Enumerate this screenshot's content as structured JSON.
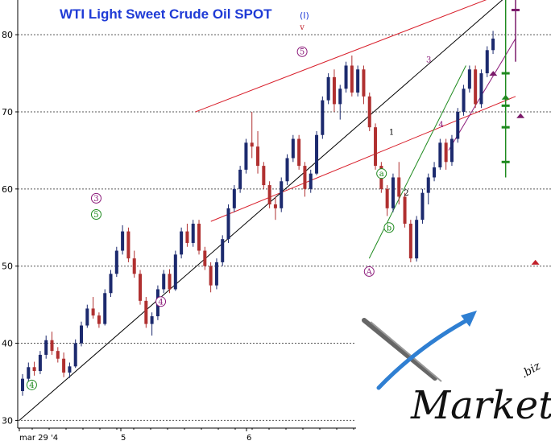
{
  "chart_data": {
    "type": "candlestick",
    "title": "WTI Light Sweet Crude Oil SPOT",
    "title_suffix": "(I)",
    "y_ticks": [
      "30",
      "40",
      "50",
      "60",
      "70",
      "80"
    ],
    "x_ticks": [
      "mar 29 '4",
      "5",
      "6"
    ],
    "ylim": [
      29,
      84.5
    ],
    "xlim": [
      0,
      100
    ],
    "grid": "horizontal dashed",
    "colors": {
      "up": "#1c2a6e",
      "down": "#b03030",
      "channel": "#d81e2a",
      "trend": "#000000",
      "wave_green": "#1e8a1e",
      "wave_purple": "#8b1a7a",
      "target_green": "#1e8a1e",
      "target_purple": "#7a1a6a"
    },
    "candles": [
      [
        33.8,
        36.0,
        33.2,
        35.4
      ],
      [
        35.4,
        37.5,
        34.9,
        36.9
      ],
      [
        36.9,
        37.6,
        35.8,
        36.4
      ],
      [
        36.4,
        39.0,
        36.0,
        38.5
      ],
      [
        38.5,
        41.0,
        38.0,
        40.4
      ],
      [
        40.4,
        41.5,
        38.5,
        39.0
      ],
      [
        39.0,
        39.5,
        37.5,
        38.0
      ],
      [
        38.0,
        38.8,
        35.6,
        36.2
      ],
      [
        36.2,
        37.5,
        35.5,
        37.0
      ],
      [
        37.0,
        40.5,
        36.8,
        40.0
      ],
      [
        40.0,
        42.8,
        39.6,
        42.3
      ],
      [
        42.3,
        45.0,
        42.0,
        44.5
      ],
      [
        44.5,
        46.0,
        43.2,
        43.6
      ],
      [
        43.6,
        44.0,
        42.0,
        42.5
      ],
      [
        42.5,
        47.0,
        42.3,
        46.5
      ],
      [
        46.5,
        49.5,
        46.0,
        49.0
      ],
      [
        49.0,
        52.5,
        48.6,
        52.0
      ],
      [
        52.0,
        55.3,
        51.5,
        54.5
      ],
      [
        54.5,
        55.0,
        50.5,
        51.0
      ],
      [
        51.0,
        52.0,
        48.5,
        49.0
      ],
      [
        49.0,
        49.5,
        45.0,
        45.5
      ],
      [
        45.5,
        46.0,
        42.0,
        42.5
      ],
      [
        42.5,
        44.0,
        41.0,
        43.5
      ],
      [
        43.5,
        47.5,
        43.0,
        47.0
      ],
      [
        47.0,
        49.5,
        46.5,
        49.0
      ],
      [
        49.0,
        49.6,
        46.5,
        47.0
      ],
      [
        47.0,
        52.0,
        46.8,
        51.5
      ],
      [
        51.5,
        55.0,
        51.0,
        54.5
      ],
      [
        54.5,
        55.5,
        52.5,
        53.0
      ],
      [
        53.0,
        56.0,
        52.5,
        55.5
      ],
      [
        55.5,
        56.0,
        51.5,
        52.0
      ],
      [
        52.0,
        52.5,
        49.5,
        50.0
      ],
      [
        50.0,
        50.5,
        46.6,
        47.5
      ],
      [
        47.5,
        51.0,
        47.0,
        50.5
      ],
      [
        50.5,
        54.0,
        50.0,
        53.5
      ],
      [
        53.5,
        58.0,
        53.0,
        57.5
      ],
      [
        57.5,
        60.5,
        57.0,
        60.0
      ],
      [
        60.0,
        63.0,
        59.5,
        62.5
      ],
      [
        62.5,
        66.5,
        62.0,
        66.0
      ],
      [
        66.0,
        70.0,
        64.0,
        65.5
      ],
      [
        65.5,
        67.5,
        62.0,
        63.0
      ],
      [
        63.0,
        63.5,
        60.0,
        60.5
      ],
      [
        60.5,
        61.0,
        57.5,
        58.0
      ],
      [
        58.0,
        59.0,
        56.0,
        57.5
      ],
      [
        57.5,
        61.5,
        57.0,
        61.0
      ],
      [
        61.0,
        64.5,
        60.5,
        64.0
      ],
      [
        64.0,
        67.0,
        63.5,
        66.5
      ],
      [
        66.5,
        67.0,
        62.5,
        63.0
      ],
      [
        63.0,
        63.5,
        59.0,
        60.0
      ],
      [
        60.0,
        62.5,
        59.5,
        62.0
      ],
      [
        62.0,
        67.5,
        61.8,
        67.0
      ],
      [
        67.0,
        72.0,
        66.5,
        71.5
      ],
      [
        71.5,
        75.0,
        71.0,
        74.5
      ],
      [
        74.5,
        75.5,
        70.0,
        71.0
      ],
      [
        71.0,
        73.5,
        69.0,
        73.0
      ],
      [
        73.0,
        76.5,
        72.5,
        76.0
      ],
      [
        76.0,
        77.3,
        72.0,
        72.5
      ],
      [
        72.5,
        76.0,
        72.0,
        75.5
      ],
      [
        75.5,
        76.0,
        71.0,
        72.0
      ],
      [
        72.0,
        72.5,
        67.5,
        68.0
      ],
      [
        68.0,
        68.5,
        62.5,
        63.0
      ],
      [
        63.0,
        63.5,
        59.5,
        60.0
      ],
      [
        60.0,
        60.5,
        56.5,
        57.5
      ],
      [
        57.5,
        62.0,
        57.0,
        61.5
      ],
      [
        61.5,
        63.5,
        58.0,
        59.0
      ],
      [
        59.0,
        59.5,
        55.0,
        55.5
      ],
      [
        55.5,
        56.0,
        50.5,
        51.0
      ],
      [
        51.0,
        56.5,
        50.6,
        56.0
      ],
      [
        56.0,
        60.0,
        55.5,
        59.5
      ],
      [
        59.5,
        62.0,
        58.0,
        61.5
      ],
      [
        61.5,
        63.5,
        61.0,
        62.8
      ],
      [
        62.8,
        66.5,
        62.5,
        66.0
      ],
      [
        66.0,
        66.5,
        62.5,
        63.5
      ],
      [
        63.5,
        67.0,
        63.0,
        66.5
      ],
      [
        66.5,
        70.5,
        66.0,
        70.0
      ],
      [
        70.0,
        73.5,
        69.5,
        73.0
      ],
      [
        73.0,
        76.0,
        72.5,
        75.5
      ],
      [
        75.5,
        76.0,
        70.5,
        71.0
      ],
      [
        71.0,
        75.5,
        70.5,
        75.0
      ],
      [
        75.0,
        78.5,
        74.5,
        78.0
      ],
      [
        78.0,
        80.5,
        77.5,
        79.5
      ]
    ],
    "channels": [
      {
        "name": "upper",
        "points": [
          [
            35.5,
            70.0
          ],
          [
            100,
            86.0
          ]
        ]
      },
      {
        "name": "lower",
        "points": [
          [
            38.6,
            55.8
          ],
          [
            100,
            72.0
          ]
        ]
      },
      {
        "name": "long-trend",
        "points": [
          [
            0,
            30.0
          ],
          [
            100,
            86.0
          ]
        ]
      },
      {
        "name": "green-trend",
        "points": [
          [
            70.5,
            51.0
          ],
          [
            90.0,
            76.0
          ]
        ]
      },
      {
        "name": "purple-trend",
        "points": [
          [
            86.5,
            65.0
          ],
          [
            100,
            79.5
          ]
        ]
      }
    ],
    "wave_labels": [
      {
        "text": "4",
        "x": 2.5,
        "y": 34.6,
        "style": "circle",
        "color": "green"
      },
      {
        "text": "5",
        "x": 15.5,
        "y": 56.7,
        "style": "circle",
        "color": "green"
      },
      {
        "text": "3",
        "x": 15.5,
        "y": 58.8,
        "style": "circle",
        "color": "purple"
      },
      {
        "text": "4",
        "x": 28.5,
        "y": 45.4,
        "style": "circle",
        "color": "purple"
      },
      {
        "text": "5",
        "x": 57.0,
        "y": 77.8,
        "style": "circle",
        "color": "purple"
      },
      {
        "text": "v",
        "x": 57.0,
        "y": 81.0,
        "style": "plain",
        "color": "red"
      },
      {
        "text": "A",
        "x": 70.5,
        "y": 49.3,
        "style": "circle",
        "color": "purple"
      },
      {
        "text": "a",
        "x": 73.0,
        "y": 62.0,
        "style": "circle",
        "color": "green"
      },
      {
        "text": "b",
        "x": 74.5,
        "y": 55.0,
        "style": "circle",
        "color": "green"
      },
      {
        "text": "1",
        "x": 75.0,
        "y": 67.4,
        "style": "plain",
        "color": "black"
      },
      {
        "text": "2",
        "x": 78.0,
        "y": 59.5,
        "style": "plain",
        "color": "black"
      },
      {
        "text": "3",
        "x": 82.5,
        "y": 76.8,
        "style": "plain",
        "color": "purple"
      },
      {
        "text": "4",
        "x": 85.0,
        "y": 68.4,
        "style": "plain",
        "color": "purple"
      }
    ],
    "targets": [
      {
        "color": "green",
        "type": "vline",
        "x": 98.0,
        "y_from": 61.5,
        "y_to": 84.5
      },
      {
        "color": "green",
        "type": "tick",
        "x": 98.0,
        "y": 75.0
      },
      {
        "color": "green",
        "type": "tick",
        "x": 98.0,
        "y": 70.8
      },
      {
        "color": "green",
        "type": "tick",
        "x": 98.0,
        "y": 68.0
      },
      {
        "color": "green",
        "type": "tick",
        "x": 98.0,
        "y": 63.5
      },
      {
        "color": "green",
        "type": "marker",
        "x": 98.0,
        "y": 71.9
      },
      {
        "color": "purple",
        "type": "vline",
        "x": 100.0,
        "y_from": 76.5,
        "y_to": 84.5
      },
      {
        "color": "purple",
        "type": "tick",
        "x": 100.0,
        "y": 83.2
      },
      {
        "color": "purple",
        "type": "marker",
        "x": 95.5,
        "y": 75.0
      },
      {
        "color": "purple",
        "type": "marker",
        "x": 101.0,
        "y": 69.5
      },
      {
        "color": "red",
        "type": "marker",
        "x": 104.0,
        "y": 50.5
      }
    ]
  },
  "logo": {
    "text": "Market",
    "suffix": ".biz"
  }
}
